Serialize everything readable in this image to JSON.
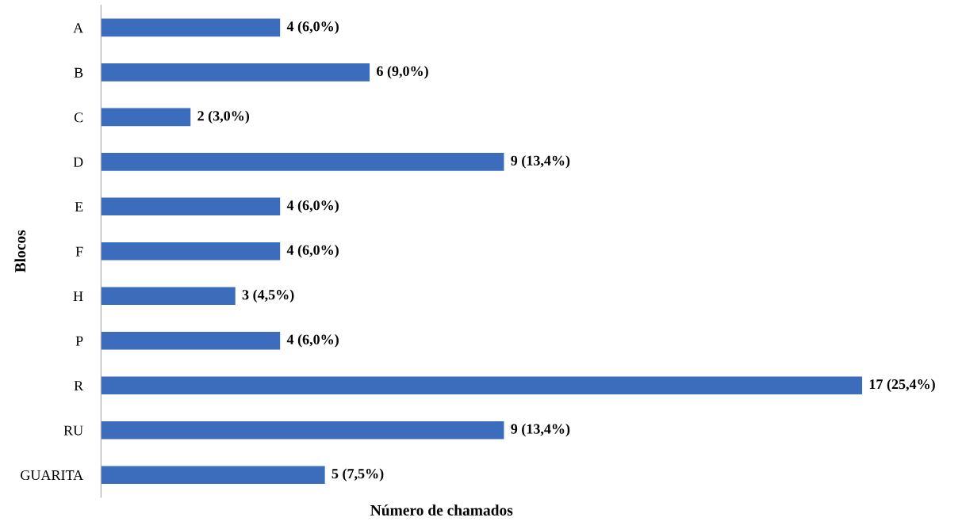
{
  "chart_data": {
    "type": "bar",
    "orientation": "horizontal",
    "xlabel": "Número de chamados",
    "ylabel": "Blocos",
    "categories": [
      "A",
      "B",
      "C",
      "D",
      "E",
      "F",
      "H",
      "P",
      "R",
      "RU",
      "GUARITA"
    ],
    "values": [
      4,
      6,
      2,
      9,
      4,
      4,
      3,
      4,
      17,
      9,
      5
    ],
    "value_labels": [
      "4 (6,0%)",
      "6 (9,0%)",
      "2 (3,0%)",
      "9 (13,4%)",
      "4 (6,0%)",
      "4 (6,0%)",
      "3 (4,5%)",
      "4 (6,0%)",
      "17 (25,4%)",
      "9 (13,4%)",
      "5 (7,5%)"
    ],
    "color": "#3c6cbc",
    "tick_labels": "y",
    "grid": false,
    "legend": false
  }
}
